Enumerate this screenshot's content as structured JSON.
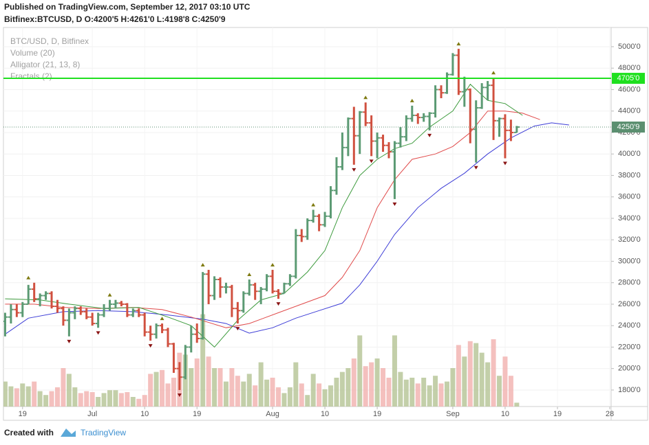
{
  "chart_data": {
    "type": "ohlc",
    "title": "Published on TradingView.com, September 12, 2017 03:10 UTC",
    "subtitle": "Bitfinex:BTCUSD, D  O:4200'5 H:4261'0 L:4198'8 C:4250'9",
    "x": [
      "2017-06-16",
      "2017-06-17",
      "2017-06-18",
      "2017-06-19",
      "2017-06-20",
      "2017-06-21",
      "2017-06-22",
      "2017-06-23",
      "2017-06-24",
      "2017-06-25",
      "2017-06-26",
      "2017-06-27",
      "2017-06-28",
      "2017-06-29",
      "2017-06-30",
      "2017-07-01",
      "2017-07-02",
      "2017-07-03",
      "2017-07-04",
      "2017-07-05",
      "2017-07-06",
      "2017-07-07",
      "2017-07-08",
      "2017-07-09",
      "2017-07-10",
      "2017-07-11",
      "2017-07-12",
      "2017-07-13",
      "2017-07-14",
      "2017-07-15",
      "2017-07-16",
      "2017-07-17",
      "2017-07-18",
      "2017-07-19",
      "2017-07-20",
      "2017-07-21",
      "2017-07-22",
      "2017-07-23",
      "2017-07-24",
      "2017-07-25",
      "2017-07-26",
      "2017-07-27",
      "2017-07-28",
      "2017-07-29",
      "2017-07-30",
      "2017-07-31",
      "2017-08-01",
      "2017-08-02",
      "2017-08-03",
      "2017-08-04",
      "2017-08-05",
      "2017-08-06",
      "2017-08-07",
      "2017-08-08",
      "2017-08-09",
      "2017-08-10",
      "2017-08-11",
      "2017-08-12",
      "2017-08-13",
      "2017-08-14",
      "2017-08-15",
      "2017-08-16",
      "2017-08-17",
      "2017-08-18",
      "2017-08-19",
      "2017-08-20",
      "2017-08-21",
      "2017-08-22",
      "2017-08-23",
      "2017-08-24",
      "2017-08-25",
      "2017-08-26",
      "2017-08-27",
      "2017-08-28",
      "2017-08-29",
      "2017-08-30",
      "2017-08-31",
      "2017-09-01",
      "2017-09-02",
      "2017-09-03",
      "2017-09-04",
      "2017-09-05",
      "2017-09-06",
      "2017-09-07",
      "2017-09-08",
      "2017-09-09",
      "2017-09-10",
      "2017-09-11",
      "2017-09-12"
    ],
    "series": [
      {
        "name": "BTC/USD, D, Bitfinex",
        "type": "ohlc",
        "up_color": "#5b9a73",
        "down_color": "#d0503f",
        "open": [
          2440,
          2480,
          2550,
          2520,
          2600,
          2740,
          2650,
          2680,
          2700,
          2580,
          2560,
          2450,
          2520,
          2560,
          2530,
          2480,
          2420,
          2500,
          2560,
          2600,
          2610,
          2600,
          2500,
          2540,
          2500,
          2340,
          2320,
          2400,
          2360,
          2230,
          2000,
          1920,
          2200,
          2320,
          2280,
          2880,
          2680,
          2830,
          2760,
          2760,
          2560,
          2540,
          2700,
          2780,
          2720,
          2740,
          2860,
          2720,
          2700,
          2790,
          2860,
          3240,
          3230,
          3380,
          3420,
          3340,
          3420,
          3660,
          3880,
          4060,
          4330,
          4170,
          4390,
          4290,
          4120,
          4150,
          4080,
          4020,
          4100,
          4160,
          4330,
          4360,
          4340,
          4350,
          4380,
          4600,
          4570,
          4740,
          4920,
          4580,
          4600,
          4230,
          4430,
          4620,
          4640,
          4310,
          4330,
          4220,
          4200.5
        ],
        "high": [
          2520,
          2600,
          2600,
          2620,
          2780,
          2800,
          2700,
          2720,
          2720,
          2640,
          2580,
          2560,
          2580,
          2580,
          2560,
          2520,
          2520,
          2600,
          2640,
          2640,
          2630,
          2610,
          2560,
          2560,
          2520,
          2400,
          2420,
          2420,
          2380,
          2240,
          2060,
          2220,
          2400,
          2420,
          2900,
          2920,
          2860,
          2850,
          2800,
          2780,
          2620,
          2720,
          2830,
          2800,
          2760,
          2880,
          2920,
          2740,
          2800,
          2880,
          3300,
          3300,
          3400,
          3480,
          3440,
          3460,
          3700,
          3970,
          4200,
          4340,
          4440,
          4400,
          4480,
          4360,
          4200,
          4180,
          4110,
          4120,
          4250,
          4360,
          4450,
          4380,
          4380,
          4390,
          4640,
          4640,
          4760,
          4940,
          4980,
          4720,
          4610,
          4500,
          4660,
          4680,
          4710,
          4340,
          4370,
          4320,
          4261
        ],
        "low": [
          2300,
          2420,
          2480,
          2480,
          2600,
          2620,
          2580,
          2640,
          2560,
          2520,
          2400,
          2300,
          2460,
          2500,
          2460,
          2400,
          2380,
          2480,
          2540,
          2560,
          2580,
          2480,
          2480,
          2480,
          2300,
          2260,
          2280,
          2330,
          2200,
          1960,
          1800,
          1900,
          2150,
          2240,
          2270,
          2600,
          2640,
          2660,
          2700,
          2480,
          2420,
          2520,
          2680,
          2640,
          2600,
          2720,
          2700,
          2650,
          2700,
          2770,
          2840,
          3180,
          3200,
          3360,
          3280,
          3320,
          3400,
          3620,
          3850,
          3980,
          3900,
          4000,
          4260,
          3980,
          3960,
          4020,
          3960,
          3580,
          4060,
          4120,
          4300,
          4280,
          4300,
          4220,
          4340,
          4520,
          4560,
          4730,
          4550,
          4440,
          4100,
          3920,
          4420,
          4500,
          4130,
          4160,
          3960,
          4120,
          4198.8
        ],
        "close": [
          2480,
          2550,
          2520,
          2600,
          2740,
          2650,
          2680,
          2700,
          2580,
          2560,
          2450,
          2520,
          2560,
          2530,
          2480,
          2420,
          2500,
          2560,
          2600,
          2610,
          2600,
          2500,
          2540,
          2500,
          2340,
          2320,
          2400,
          2360,
          2230,
          2000,
          1920,
          2200,
          2320,
          2280,
          2880,
          2680,
          2830,
          2760,
          2760,
          2560,
          2540,
          2700,
          2780,
          2720,
          2740,
          2860,
          2720,
          2700,
          2790,
          2860,
          3240,
          3230,
          3380,
          3420,
          3340,
          3420,
          3660,
          3880,
          4060,
          4330,
          4170,
          4390,
          4290,
          4120,
          4150,
          4080,
          4020,
          4100,
          4160,
          4330,
          4360,
          4340,
          4350,
          4380,
          4600,
          4570,
          4740,
          4920,
          4580,
          4600,
          4230,
          4430,
          4620,
          4640,
          4310,
          4330,
          4220,
          4200,
          4250.9
        ]
      },
      {
        "name": "Volume (20)",
        "type": "volume",
        "up_color": "#b9c79a",
        "down_color": "#f2b5b3",
        "ylim": [
          0,
          100
        ],
        "values": [
          26,
          21,
          19,
          24,
          21,
          26,
          16,
          12,
          16,
          20,
          40,
          34,
          20,
          14,
          16,
          15,
          10,
          14,
          17,
          17,
          14,
          15,
          10,
          8,
          12,
          34,
          36,
          38,
          24,
          30,
          56,
          54,
          40,
          50,
          96,
          52,
          40,
          40,
          26,
          40,
          32,
          26,
          34,
          22,
          46,
          28,
          30,
          20,
          14,
          20,
          46,
          24,
          12,
          34,
          24,
          18,
          22,
          30,
          36,
          40,
          50,
          74,
          42,
          46,
          50,
          40,
          30,
          74,
          36,
          28,
          30,
          24,
          30,
          22,
          32,
          24,
          26,
          40,
          64,
          52,
          68,
          66,
          56,
          46,
          70,
          32,
          52,
          32,
          4
        ]
      },
      {
        "name": "Alligator (21, 13, 8)",
        "type": "alligator",
        "lines": [
          {
            "color": "#3b3bd6",
            "x": [
              "2017-06-16",
              "2017-06-20",
              "2017-06-26",
              "2017-07-02",
              "2017-07-08",
              "2017-07-14",
              "2017-07-20",
              "2017-07-24",
              "2017-07-28",
              "2017-08-01",
              "2017-08-05",
              "2017-08-09",
              "2017-08-13",
              "2017-08-16",
              "2017-08-19",
              "2017-08-22",
              "2017-08-26",
              "2017-08-30",
              "2017-09-03",
              "2017-09-07",
              "2017-09-11",
              "2017-09-15",
              "2017-09-18",
              "2017-09-21"
            ],
            "values": [
              2320,
              2470,
              2530,
              2540,
              2530,
              2500,
              2460,
              2420,
              2330,
              2380,
              2470,
              2540,
              2610,
              2780,
              3000,
              3250,
              3500,
              3680,
              3820,
              4000,
              4150,
              4260,
              4290,
              4270
            ]
          },
          {
            "color": "#e04a4a",
            "x": [
              "2017-06-16",
              "2017-06-21",
              "2017-06-26",
              "2017-07-02",
              "2017-07-08",
              "2017-07-13",
              "2017-07-18",
              "2017-07-24",
              "2017-07-28",
              "2017-08-02",
              "2017-08-06",
              "2017-08-10",
              "2017-08-13",
              "2017-08-16",
              "2017-08-19",
              "2017-08-22",
              "2017-08-25",
              "2017-08-29",
              "2017-09-01",
              "2017-09-04",
              "2017-09-07",
              "2017-09-10",
              "2017-09-13",
              "2017-09-16"
            ],
            "values": [
              2600,
              2600,
              2570,
              2560,
              2570,
              2550,
              2480,
              2380,
              2420,
              2520,
              2600,
              2680,
              2850,
              3100,
              3500,
              3760,
              3950,
              4000,
              4070,
              4200,
              4400,
              4400,
              4380,
              4320
            ]
          },
          {
            "color": "#3c9a3c",
            "x": [
              "2017-06-16",
              "2017-06-22",
              "2017-06-27",
              "2017-07-03",
              "2017-07-09",
              "2017-07-14",
              "2017-07-18",
              "2017-07-22",
              "2017-07-26",
              "2017-07-30",
              "2017-08-03",
              "2017-08-07",
              "2017-08-10",
              "2017-08-13",
              "2017-08-16",
              "2017-08-19",
              "2017-08-22",
              "2017-08-25",
              "2017-08-28",
              "2017-09-01",
              "2017-09-04",
              "2017-09-07",
              "2017-09-10",
              "2017-09-13"
            ],
            "values": [
              2650,
              2640,
              2600,
              2560,
              2570,
              2480,
              2400,
              2200,
              2450,
              2640,
              2700,
              2900,
              3100,
              3500,
              3800,
              3950,
              4050,
              4100,
              4250,
              4400,
              4650,
              4500,
              4470,
              4360
            ]
          }
        ]
      },
      {
        "name": "Fractals (2)",
        "type": "fractals",
        "up": {
          "color": "#7e7a10",
          "x": [
            "2017-06-20",
            "2017-07-04",
            "2017-07-13",
            "2017-07-20",
            "2017-07-28",
            "2017-08-01",
            "2017-08-08",
            "2017-08-17",
            "2017-08-25",
            "2017-09-02",
            "2017-09-08"
          ],
          "values": [
            2800,
            2640,
            2420,
            2920,
            2830,
            2920,
            3480,
            4480,
            4450,
            4980,
            4710
          ]
        },
        "down": {
          "color": "#8a1414",
          "x": [
            "2017-06-27",
            "2017-07-02",
            "2017-07-11",
            "2017-07-16",
            "2017-07-26",
            "2017-08-02",
            "2017-08-15",
            "2017-08-18",
            "2017-08-22",
            "2017-08-28",
            "2017-09-05",
            "2017-09-10"
          ],
          "values": [
            2300,
            2380,
            2260,
            1800,
            2420,
            2650,
            3900,
            3980,
            3580,
            4220,
            3920,
            3960
          ]
        }
      }
    ],
    "hlines": [
      {
        "value": 4705,
        "label": "4705'0",
        "color": "#1fe01f",
        "dashed": false
      },
      {
        "value": 4250.9,
        "label": "4250'9",
        "color": "#5b8f70",
        "dashed": true
      }
    ],
    "xlim": [
      "2017-06-15",
      "2017-09-28"
    ],
    "xticks": [
      {
        "value": "2017-06-19",
        "label": "19"
      },
      {
        "value": "2017-07-01",
        "label": "Jul"
      },
      {
        "value": "2017-07-10",
        "label": "10"
      },
      {
        "value": "2017-07-19",
        "label": "19"
      },
      {
        "value": "2017-08-01",
        "label": "Aug"
      },
      {
        "value": "2017-08-10",
        "label": "10"
      },
      {
        "value": "2017-08-19",
        "label": "19"
      },
      {
        "value": "2017-09-01",
        "label": "Sep"
      },
      {
        "value": "2017-09-10",
        "label": "10"
      },
      {
        "value": "2017-09-19",
        "label": "19"
      },
      {
        "value": "2017-09-28",
        "label": "28"
      }
    ],
    "ylim": [
      1646,
      5179
    ],
    "yticks": [
      {
        "value": 1800,
        "label": "1800'0"
      },
      {
        "value": 2000,
        "label": "2000'0"
      },
      {
        "value": 2200,
        "label": "2200'0"
      },
      {
        "value": 2400,
        "label": "2400'0"
      },
      {
        "value": 2600,
        "label": "2600'0"
      },
      {
        "value": 2800,
        "label": "2800'0"
      },
      {
        "value": 3000,
        "label": "3000'0"
      },
      {
        "value": 3200,
        "label": "3200'0"
      },
      {
        "value": 3400,
        "label": "3400'0"
      },
      {
        "value": 3600,
        "label": "3600'0"
      },
      {
        "value": 3800,
        "label": "3800'0"
      },
      {
        "value": 4000,
        "label": "4000'0"
      },
      {
        "value": 4200,
        "label": "4200'0"
      },
      {
        "value": 4400,
        "label": "4400'0"
      },
      {
        "value": 4600,
        "label": "4600'0"
      },
      {
        "value": 4800,
        "label": "4800'0"
      },
      {
        "value": 5000,
        "label": "5000'0"
      }
    ],
    "grid": true,
    "footer": {
      "text": "Created with",
      "brand": "TradingView"
    }
  }
}
